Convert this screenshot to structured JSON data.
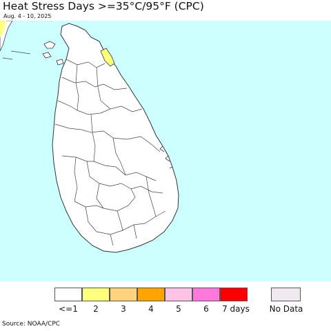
{
  "title": "Heat Stress Days >=35°C/95°F (CPC)",
  "subtitle": "Aug. 4 - 10, 2025",
  "source": "Source: NOAA/CPC",
  "colors": {
    "ocean": "#ccffff",
    "land": "#ffffff",
    "border": "#555555"
  },
  "legend": {
    "items": [
      {
        "label": "<=1",
        "color": "#ffffff"
      },
      {
        "label": "2",
        "color": "#ffff80"
      },
      {
        "label": "3",
        "color": "#ffd280"
      },
      {
        "label": "4",
        "color": "#ffa500"
      },
      {
        "label": "5",
        "color": "#ffc3e6"
      },
      {
        "label": "6",
        "color": "#ff78dc"
      },
      {
        "label": "7 days",
        "color": "#ff0000"
      }
    ],
    "no_data": {
      "label": "No Data",
      "color": "#f0eaf0"
    }
  }
}
